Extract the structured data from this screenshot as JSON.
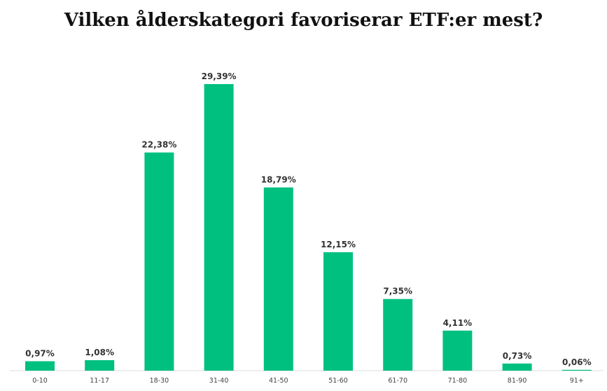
{
  "chart_data": {
    "type": "bar",
    "title": "Vilken ålderskategori favoriserar ETF:er mest?",
    "categories": [
      "0-10",
      "11-17",
      "18-30",
      "31-40",
      "41-50",
      "51-60",
      "61-70",
      "71-80",
      "81-90",
      "91+"
    ],
    "values": [
      0.97,
      1.08,
      22.38,
      29.39,
      18.79,
      12.15,
      7.35,
      4.11,
      0.73,
      0.06
    ],
    "value_labels": [
      "0,97%",
      "1,08%",
      "22,38%",
      "29,39%",
      "18,79%",
      "12,15%",
      "7,35%",
      "4,11%",
      "0,73%",
      "0,06%"
    ],
    "xlabel": "",
    "ylabel": "",
    "ylim": [
      0,
      29.39
    ],
    "grid": false,
    "legend": "none",
    "bar_color": "#00c07f",
    "axis_color": "#dddddd"
  }
}
